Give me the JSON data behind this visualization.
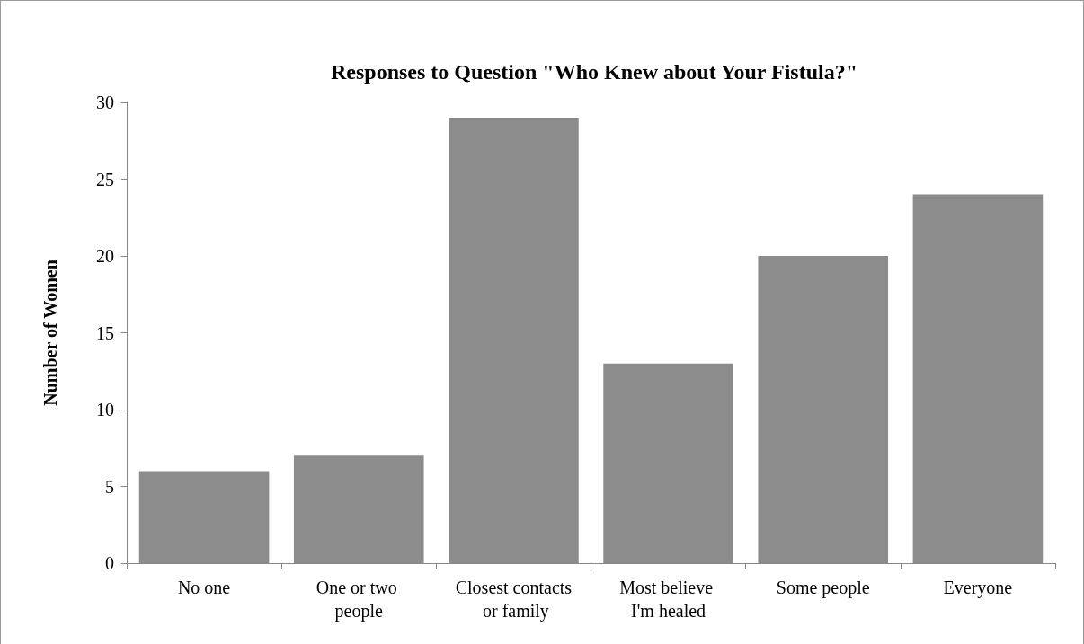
{
  "chart_data": {
    "type": "bar",
    "title": "Responses to Question \"Who Knew about Your Fistula?\"",
    "ylabel": "Number of Women",
    "categories": [
      "No one",
      "One or two people",
      "Closest contacts or family",
      "Most believe I'm healed",
      "Some people",
      "Everyone"
    ],
    "values": [
      6,
      7,
      29,
      13,
      20,
      24
    ],
    "color": "#8c8c8c",
    "ylim": [
      0,
      30
    ],
    "yticks": [
      0,
      5,
      10,
      15,
      20,
      25,
      30
    ],
    "grid": false
  }
}
